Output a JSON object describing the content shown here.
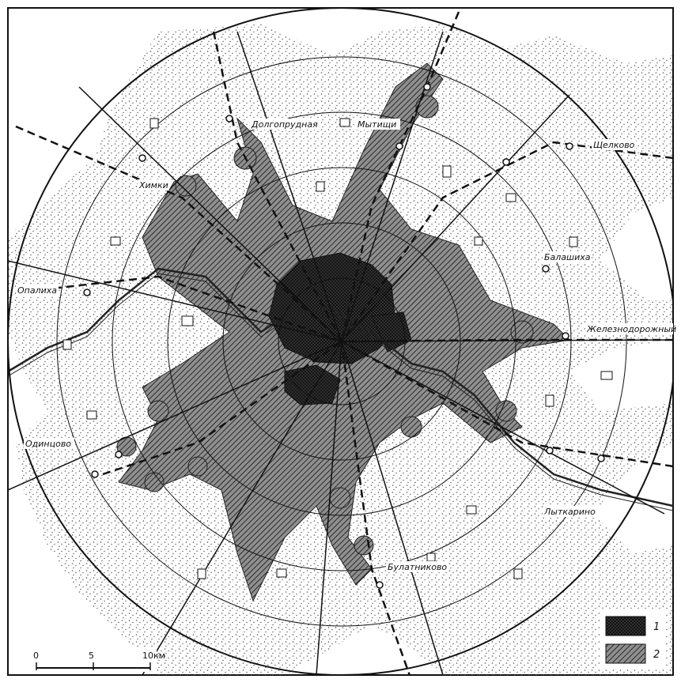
{
  "map": {
    "cities": [
      {
        "key": "khimki",
        "label": "Химки"
      },
      {
        "key": "dolgoprudnaya",
        "label": "Долгопрудная"
      },
      {
        "key": "mytishchi",
        "label": "Мытищи"
      },
      {
        "key": "shchelkovo",
        "label": "Щелково"
      },
      {
        "key": "balashikha",
        "label": "Балашиха"
      },
      {
        "key": "zheleznodorozhny",
        "label": "Железнодорожный"
      },
      {
        "key": "opalikha",
        "label": "Опалиха"
      },
      {
        "key": "odintsovo",
        "label": "Одинцово"
      },
      {
        "key": "lytkarino",
        "label": "Лыткарино"
      },
      {
        "key": "bulatnikovo",
        "label": "Булатниково"
      }
    ],
    "scale": {
      "ticks": [
        "0",
        "5",
        "10км"
      ]
    },
    "legend": [
      {
        "label": "1",
        "pattern": "dense-crosshatch"
      },
      {
        "label": "2",
        "pattern": "diagonal-hatch"
      }
    ],
    "colors": {
      "ink": "#1a1a1a",
      "paper": "#ffffff",
      "stipple": "#555555"
    }
  }
}
